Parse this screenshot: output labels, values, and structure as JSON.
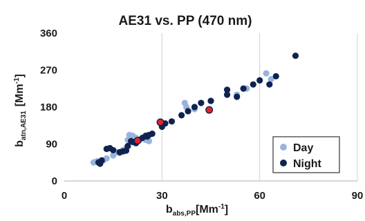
{
  "chart_data": {
    "type": "scatter",
    "title": "AE31 vs. PP (470 nm)",
    "xlabel": {
      "main": "b",
      "sub": "abs,PP",
      "unit": "[Mm",
      "sup": "-1",
      "close": "]"
    },
    "ylabel": {
      "main": "b",
      "sub": "atn,AE31",
      "unit": "[Mm",
      "sup": "-1",
      "close": "]"
    },
    "xlim": [
      0,
      90
    ],
    "ylim": [
      0,
      360
    ],
    "xticks": [
      "0",
      "30",
      "60",
      "90"
    ],
    "yticks": [
      "0",
      "90",
      "180",
      "270",
      "360"
    ],
    "grid": "vertical",
    "legend_position": "bottom-right",
    "colors": {
      "day": "#9ab3dd",
      "night": "#0f2350",
      "highlight": "#e8202a",
      "grid": "#d0d0d0",
      "axis": "#bfbfbf"
    },
    "series": [
      {
        "name": "Day",
        "color": "#9ab3dd",
        "points": [
          [
            9,
            45
          ],
          [
            10,
            48
          ],
          [
            12,
            50
          ],
          [
            13,
            55
          ],
          [
            15,
            62
          ],
          [
            16,
            70
          ],
          [
            17,
            68
          ],
          [
            18,
            75
          ],
          [
            19,
            80
          ],
          [
            19.5,
            100
          ],
          [
            20,
            112
          ],
          [
            21,
            110
          ],
          [
            22,
            105
          ],
          [
            25,
            100
          ],
          [
            26,
            97
          ],
          [
            37,
            190
          ],
          [
            37.5,
            180
          ],
          [
            38,
            170
          ],
          [
            40,
            175
          ],
          [
            45,
            195
          ],
          [
            53,
            210
          ],
          [
            56,
            225
          ],
          [
            62,
            262
          ],
          [
            63.5,
            248
          ]
        ]
      },
      {
        "name": "Night",
        "color": "#0f2350",
        "points": [
          [
            10.5,
            45
          ],
          [
            11,
            42
          ],
          [
            11.5,
            50
          ],
          [
            13,
            78
          ],
          [
            14,
            80
          ],
          [
            15,
            75
          ],
          [
            17,
            70
          ],
          [
            18,
            72
          ],
          [
            19,
            74
          ],
          [
            19.5,
            85
          ],
          [
            20.5,
            97
          ],
          [
            21,
            95
          ],
          [
            22,
            92
          ],
          [
            23,
            100
          ],
          [
            24,
            105
          ],
          [
            25,
            110
          ],
          [
            25.5,
            108
          ],
          [
            26,
            112
          ],
          [
            27,
            115
          ],
          [
            30,
            132
          ],
          [
            31,
            140
          ],
          [
            33,
            145
          ],
          [
            36,
            160
          ],
          [
            38,
            170
          ],
          [
            40,
            180
          ],
          [
            42,
            190
          ],
          [
            45,
            195
          ],
          [
            50,
            210
          ],
          [
            50,
            222
          ],
          [
            53,
            205
          ],
          [
            55,
            225
          ],
          [
            58,
            235
          ],
          [
            60,
            245
          ],
          [
            63,
            235
          ],
          [
            65,
            255
          ],
          [
            71,
            305
          ]
        ]
      }
    ],
    "highlighted_points": [
      [
        22.5,
        98
      ],
      [
        29.5,
        143
      ],
      [
        44.5,
        173
      ]
    ]
  }
}
